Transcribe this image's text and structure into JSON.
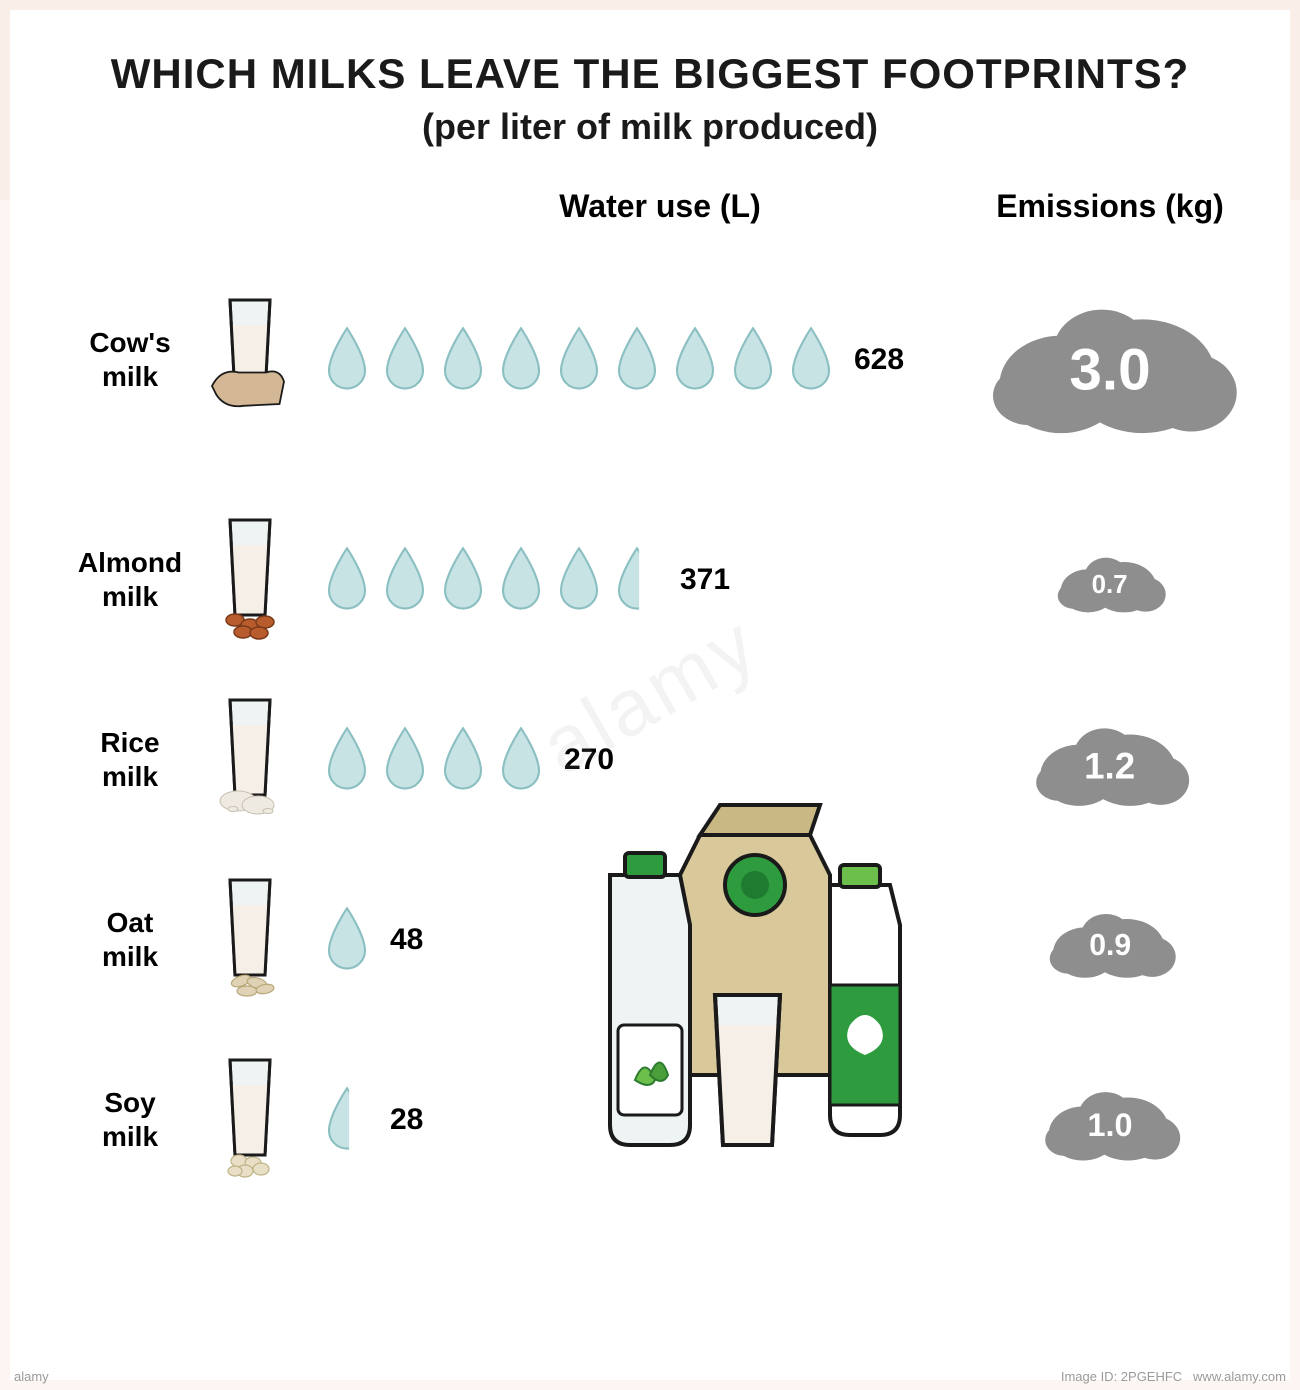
{
  "title": "WHICH MILKS LEAVE THE BIGGEST FOOTPRINTS?",
  "subtitle": "(per liter of milk produced)",
  "columns": {
    "water": "Water use (L)",
    "emissions": "Emissions (kg)"
  },
  "colors": {
    "background": "#ffffff",
    "drip": "#faeee8",
    "text": "#1a1a1a",
    "drop_fill": "#c7e3e4",
    "drop_stroke": "#8bbfc1",
    "cloud_fill": "#8e8e8e",
    "cloud_text": "#ffffff",
    "glass_outline": "#1a1a1a",
    "milk_fill": "#f6efe8",
    "cow_fill": "#d4b896",
    "almond_fill": "#b85c2e",
    "rice_fill": "#eeeae2",
    "oat_fill": "#e0d3b5",
    "soy_fill": "#e8dfc6",
    "bottle_green": "#2e9b3f",
    "bottle_cream": "#d9c89a",
    "leaf_green": "#6bbf4a"
  },
  "drop_unit": 70,
  "emission_scale": 60,
  "milks": [
    {
      "name": "Cow's milk",
      "water": 628,
      "drops": 9,
      "emissions": "3.0",
      "emission_val": 3.0,
      "icon": "cow"
    },
    {
      "name": "Almond milk",
      "water": 371,
      "drops": 5.5,
      "emissions": "0.7",
      "emission_val": 0.7,
      "icon": "almond"
    },
    {
      "name": "Rice milk",
      "water": 270,
      "drops": 4,
      "emissions": "1.2",
      "emission_val": 1.2,
      "icon": "rice"
    },
    {
      "name": "Oat milk",
      "water": 48,
      "drops": 1,
      "emissions": "0.9",
      "emission_val": 0.9,
      "icon": "oat"
    },
    {
      "name": "Soy milk",
      "water": 28,
      "drops": 0.5,
      "emissions": "1.0",
      "emission_val": 1.0,
      "icon": "soy"
    }
  ],
  "fontsize": {
    "title": 42,
    "subtitle": 36,
    "col_header": 32,
    "label": 28,
    "value": 30
  },
  "watermark": {
    "left": "alamy",
    "center": "alamy",
    "right_prefix": "Image ID: ",
    "right_id": "2PGEHFC",
    "site": "www.alamy.com"
  }
}
